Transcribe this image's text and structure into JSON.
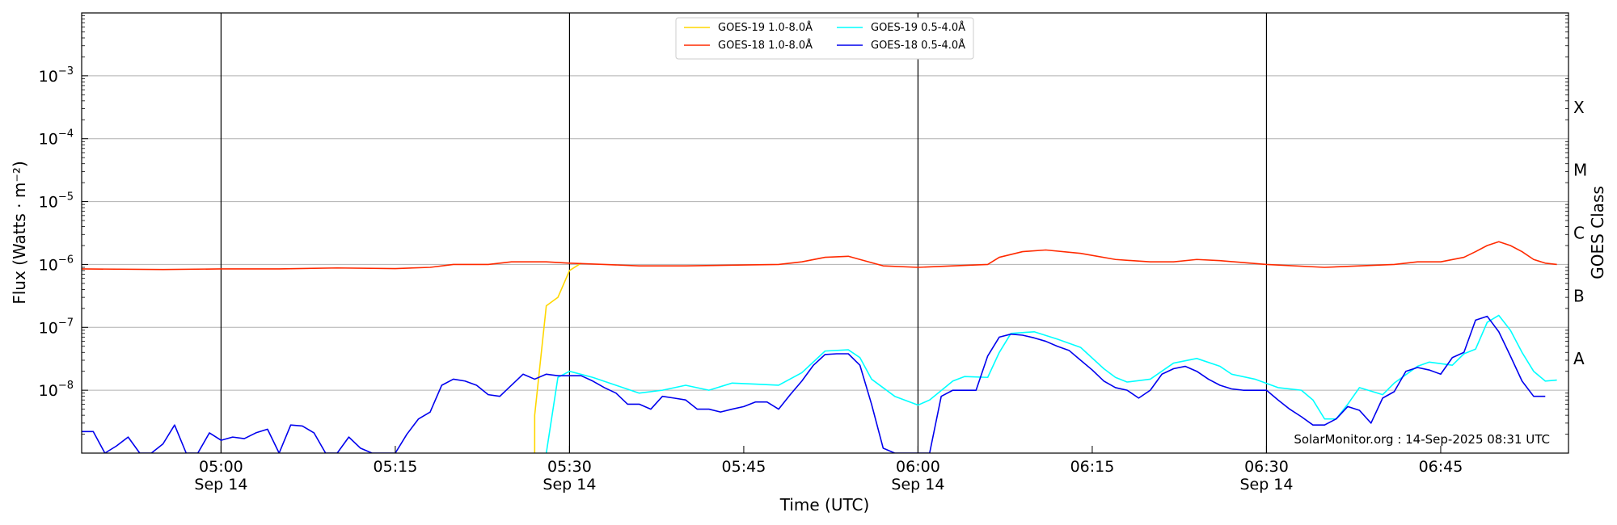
{
  "chart_data": {
    "type": "line",
    "xlabel": "Time (UTC)",
    "ylabel": "Flux (Watts · m⁻²)",
    "y2label": "GOES Class",
    "yscale": "log",
    "ylim": [
      1e-09,
      0.01
    ],
    "xlim": [
      "04:48",
      "06:56"
    ],
    "grid": "horizontal",
    "legend_position": "top-center",
    "credit": "SolarMonitor.org : 14-Sep-2025 08:31 UTC",
    "x_ticks": [
      {
        "t": "05:00",
        "date": "Sep 14"
      },
      {
        "t": "05:15",
        "date": ""
      },
      {
        "t": "05:30",
        "date": "Sep 14"
      },
      {
        "t": "05:45",
        "date": ""
      },
      {
        "t": "06:00",
        "date": "Sep 14"
      },
      {
        "t": "06:15",
        "date": ""
      },
      {
        "t": "06:30",
        "date": "Sep 14"
      },
      {
        "t": "06:45",
        "date": ""
      }
    ],
    "day_lines": [
      "05:00",
      "05:30",
      "06:00",
      "06:30"
    ],
    "y_ticks": [
      {
        "v": 1e-08,
        "sup": "−8"
      },
      {
        "v": 1e-07,
        "sup": "−7"
      },
      {
        "v": 1e-06,
        "sup": "−6"
      },
      {
        "v": 1e-05,
        "sup": "−5"
      },
      {
        "v": 0.0001,
        "sup": "−4"
      },
      {
        "v": 0.001,
        "sup": "−3"
      }
    ],
    "goes_classes": [
      {
        "label": "A",
        "v": 1e-08
      },
      {
        "label": "B",
        "v": 1e-07
      },
      {
        "label": "C",
        "v": 1e-06
      },
      {
        "label": "M",
        "v": 1e-05
      },
      {
        "label": "X",
        "v": 0.0001
      }
    ],
    "series": [
      {
        "name": "GOES-19 1.0-8.0Å",
        "color": "#ffd700",
        "points": [
          [
            "05:27",
            1e-09
          ],
          [
            "05:27",
            4e-09
          ],
          [
            "05:28",
            2.2e-07
          ],
          [
            "05:29",
            3e-07
          ],
          [
            "05:30",
            8e-07
          ],
          [
            "05:31",
            1.05e-06
          ]
        ]
      },
      {
        "name": "GOES-19 0.5-4.0Å",
        "color": "#00ffff",
        "points": [
          [
            "05:28",
            1e-09
          ],
          [
            "05:29",
            1.6e-08
          ],
          [
            "05:30",
            2e-08
          ],
          [
            "05:32",
            1.6e-08
          ],
          [
            "05:34",
            1.2e-08
          ],
          [
            "05:36",
            9e-09
          ],
          [
            "05:38",
            1e-08
          ],
          [
            "05:40",
            1.2e-08
          ],
          [
            "05:42",
            1e-08
          ],
          [
            "05:44",
            1.3e-08
          ],
          [
            "05:46",
            1.25e-08
          ],
          [
            "05:48",
            1.2e-08
          ],
          [
            "05:50",
            1.9e-08
          ],
          [
            "05:52",
            4.2e-08
          ],
          [
            "05:54",
            4.4e-08
          ],
          [
            "05:55",
            3.3e-08
          ],
          [
            "05:56",
            1.5e-08
          ],
          [
            "05:58",
            8e-09
          ],
          [
            "06:00",
            5.8e-09
          ],
          [
            "06:01",
            7e-09
          ],
          [
            "06:03",
            1.4e-08
          ],
          [
            "06:04",
            1.65e-08
          ],
          [
            "06:06",
            1.6e-08
          ],
          [
            "06:07",
            4e-08
          ],
          [
            "06:08",
            8e-08
          ],
          [
            "06:10",
            8.5e-08
          ],
          [
            "06:12",
            6.5e-08
          ],
          [
            "06:14",
            4.8e-08
          ],
          [
            "06:16",
            2.2e-08
          ],
          [
            "06:17",
            1.6e-08
          ],
          [
            "06:18",
            1.35e-08
          ],
          [
            "06:20",
            1.5e-08
          ],
          [
            "06:22",
            2.7e-08
          ],
          [
            "06:24",
            3.2e-08
          ],
          [
            "06:26",
            2.4e-08
          ],
          [
            "06:27",
            1.8e-08
          ],
          [
            "06:29",
            1.5e-08
          ],
          [
            "06:31",
            1.1e-08
          ],
          [
            "06:33",
            1e-08
          ],
          [
            "06:34",
            7e-09
          ],
          [
            "06:35",
            3.5e-09
          ],
          [
            "06:36",
            3.5e-09
          ],
          [
            "06:37",
            6e-09
          ],
          [
            "06:38",
            1.1e-08
          ],
          [
            "06:40",
            8.5e-09
          ],
          [
            "06:41",
            1.3e-08
          ],
          [
            "06:43",
            2.4e-08
          ],
          [
            "06:44",
            2.8e-08
          ],
          [
            "06:46",
            2.5e-08
          ],
          [
            "06:47",
            3.8e-08
          ],
          [
            "06:48",
            4.5e-08
          ],
          [
            "06:49",
            1.2e-07
          ],
          [
            "06:50",
            1.55e-07
          ],
          [
            "06:51",
            9e-08
          ],
          [
            "06:52",
            4e-08
          ],
          [
            "06:53",
            2e-08
          ],
          [
            "06:54",
            1.4e-08
          ],
          [
            "06:55",
            1.45e-08
          ]
        ]
      },
      {
        "name": "GOES-18 1.0-8.0Å",
        "color": "#ff2a00",
        "points": [
          [
            "04:48",
            8.5e-07
          ],
          [
            "04:55",
            8.3e-07
          ],
          [
            "05:00",
            8.5e-07
          ],
          [
            "05:05",
            8.5e-07
          ],
          [
            "05:10",
            8.8e-07
          ],
          [
            "05:15",
            8.6e-07
          ],
          [
            "05:18",
            9e-07
          ],
          [
            "05:20",
            1e-06
          ],
          [
            "05:23",
            1e-06
          ],
          [
            "05:25",
            1.1e-06
          ],
          [
            "05:28",
            1.1e-06
          ],
          [
            "05:30",
            1.05e-06
          ],
          [
            "05:33",
            1e-06
          ],
          [
            "05:36",
            9.5e-07
          ],
          [
            "05:40",
            9.5e-07
          ],
          [
            "05:45",
            9.8e-07
          ],
          [
            "05:48",
            1e-06
          ],
          [
            "05:50",
            1.1e-06
          ],
          [
            "05:52",
            1.3e-06
          ],
          [
            "05:54",
            1.35e-06
          ],
          [
            "05:55",
            1.2e-06
          ],
          [
            "05:57",
            9.5e-07
          ],
          [
            "06:00",
            9e-07
          ],
          [
            "06:03",
            9.5e-07
          ],
          [
            "06:06",
            1e-06
          ],
          [
            "06:07",
            1.3e-06
          ],
          [
            "06:09",
            1.6e-06
          ],
          [
            "06:11",
            1.7e-06
          ],
          [
            "06:14",
            1.5e-06
          ],
          [
            "06:17",
            1.2e-06
          ],
          [
            "06:20",
            1.1e-06
          ],
          [
            "06:22",
            1.1e-06
          ],
          [
            "06:24",
            1.2e-06
          ],
          [
            "06:26",
            1.15e-06
          ],
          [
            "06:30",
            1e-06
          ],
          [
            "06:35",
            9e-07
          ],
          [
            "06:38",
            9.5e-07
          ],
          [
            "06:41",
            1e-06
          ],
          [
            "06:43",
            1.1e-06
          ],
          [
            "06:45",
            1.1e-06
          ],
          [
            "06:47",
            1.3e-06
          ],
          [
            "06:48",
            1.6e-06
          ],
          [
            "06:49",
            2e-06
          ],
          [
            "06:50",
            2.3e-06
          ],
          [
            "06:51",
            2e-06
          ],
          [
            "06:52",
            1.6e-06
          ],
          [
            "06:53",
            1.2e-06
          ],
          [
            "06:54",
            1.05e-06
          ],
          [
            "06:55",
            1e-06
          ]
        ]
      },
      {
        "name": "GOES-18 0.5-4.0Å",
        "color": "#0000ee",
        "points": [
          [
            "04:48",
            2.2e-09
          ],
          [
            "04:49",
            2.2e-09
          ],
          [
            "04:50",
            1e-09
          ],
          [
            "04:51",
            1.3e-09
          ],
          [
            "04:52",
            1.8e-09
          ],
          [
            "04:53",
            1e-09
          ],
          [
            "04:54",
            1e-09
          ],
          [
            "04:55",
            1.4e-09
          ],
          [
            "04:56",
            2.8e-09
          ],
          [
            "04:57",
            1e-09
          ],
          [
            "04:58",
            1e-09
          ],
          [
            "04:59",
            2.1e-09
          ],
          [
            "05:00",
            1.6e-09
          ],
          [
            "05:01",
            1.8e-09
          ],
          [
            "05:02",
            1.7e-09
          ],
          [
            "05:03",
            2.1e-09
          ],
          [
            "05:04",
            2.4e-09
          ],
          [
            "05:05",
            1e-09
          ],
          [
            "05:06",
            2.8e-09
          ],
          [
            "05:07",
            2.7e-09
          ],
          [
            "05:08",
            2.1e-09
          ],
          [
            "05:09",
            1e-09
          ],
          [
            "05:10",
            1e-09
          ],
          [
            "05:11",
            1.8e-09
          ],
          [
            "05:12",
            1.2e-09
          ],
          [
            "05:13",
            1e-09
          ],
          [
            "05:14",
            1e-09
          ],
          [
            "05:15",
            1e-09
          ],
          [
            "05:16",
            2e-09
          ],
          [
            "05:17",
            3.5e-09
          ],
          [
            "05:18",
            4.5e-09
          ],
          [
            "05:19",
            1.2e-08
          ],
          [
            "05:20",
            1.5e-08
          ],
          [
            "05:21",
            1.4e-08
          ],
          [
            "05:22",
            1.2e-08
          ],
          [
            "05:23",
            8.5e-09
          ],
          [
            "05:24",
            8e-09
          ],
          [
            "05:25",
            1.2e-08
          ],
          [
            "05:26",
            1.8e-08
          ],
          [
            "05:27",
            1.5e-08
          ],
          [
            "05:28",
            1.8e-08
          ],
          [
            "05:29",
            1.7e-08
          ],
          [
            "05:30",
            1.7e-08
          ],
          [
            "05:31",
            1.7e-08
          ],
          [
            "05:32",
            1.4e-08
          ],
          [
            "05:33",
            1.1e-08
          ],
          [
            "05:34",
            9e-09
          ],
          [
            "05:35",
            6e-09
          ],
          [
            "05:36",
            6e-09
          ],
          [
            "05:37",
            5e-09
          ],
          [
            "05:38",
            8e-09
          ],
          [
            "05:39",
            7.5e-09
          ],
          [
            "05:40",
            7e-09
          ],
          [
            "05:41",
            5e-09
          ],
          [
            "05:42",
            5e-09
          ],
          [
            "05:43",
            4.5e-09
          ],
          [
            "05:44",
            5e-09
          ],
          [
            "05:45",
            5.5e-09
          ],
          [
            "05:46",
            6.5e-09
          ],
          [
            "05:47",
            6.5e-09
          ],
          [
            "05:48",
            5e-09
          ],
          [
            "05:49",
            8.5e-09
          ],
          [
            "05:50",
            1.4e-08
          ],
          [
            "05:51",
            2.5e-08
          ],
          [
            "05:52",
            3.7e-08
          ],
          [
            "05:53",
            3.8e-08
          ],
          [
            "05:54",
            3.8e-08
          ],
          [
            "05:55",
            2.5e-08
          ],
          [
            "05:56",
            6e-09
          ],
          [
            "05:57",
            1.2e-09
          ],
          [
            "05:58",
            1e-09
          ],
          [
            "06:01",
            1e-09
          ],
          [
            "06:02",
            8e-09
          ],
          [
            "06:03",
            1e-08
          ],
          [
            "06:04",
            1e-08
          ],
          [
            "06:05",
            1e-08
          ],
          [
            "06:06",
            3.5e-08
          ],
          [
            "06:07",
            7e-08
          ],
          [
            "06:08",
            7.8e-08
          ],
          [
            "06:09",
            7.5e-08
          ],
          [
            "06:10",
            6.8e-08
          ],
          [
            "06:11",
            6e-08
          ],
          [
            "06:12",
            5e-08
          ],
          [
            "06:13",
            4.3e-08
          ],
          [
            "06:14",
            3e-08
          ],
          [
            "06:15",
            2.1e-08
          ],
          [
            "06:16",
            1.4e-08
          ],
          [
            "06:17",
            1.1e-08
          ],
          [
            "06:18",
            1e-08
          ],
          [
            "06:19",
            7.5e-09
          ],
          [
            "06:20",
            1e-08
          ],
          [
            "06:21",
            1.8e-08
          ],
          [
            "06:22",
            2.2e-08
          ],
          [
            "06:23",
            2.4e-08
          ],
          [
            "06:24",
            2e-08
          ],
          [
            "06:25",
            1.5e-08
          ],
          [
            "06:26",
            1.2e-08
          ],
          [
            "06:27",
            1.05e-08
          ],
          [
            "06:28",
            1e-08
          ],
          [
            "06:29",
            1e-08
          ],
          [
            "06:30",
            1e-08
          ],
          [
            "06:31",
            7e-09
          ],
          [
            "06:32",
            5e-09
          ],
          [
            "06:33",
            3.8e-09
          ],
          [
            "06:34",
            2.8e-09
          ],
          [
            "06:35",
            2.8e-09
          ],
          [
            "06:36",
            3.5e-09
          ],
          [
            "06:37",
            5.5e-09
          ],
          [
            "06:38",
            4.8e-09
          ],
          [
            "06:39",
            3e-09
          ],
          [
            "06:40",
            7.5e-09
          ],
          [
            "06:41",
            9.5e-09
          ],
          [
            "06:42",
            2e-08
          ],
          [
            "06:43",
            2.3e-08
          ],
          [
            "06:44",
            2.1e-08
          ],
          [
            "06:45",
            1.8e-08
          ],
          [
            "06:46",
            3.3e-08
          ],
          [
            "06:47",
            4e-08
          ],
          [
            "06:48",
            1.3e-07
          ],
          [
            "06:49",
            1.5e-07
          ],
          [
            "06:50",
            8.5e-08
          ],
          [
            "06:51",
            3.5e-08
          ],
          [
            "06:52",
            1.4e-08
          ],
          [
            "06:53",
            8e-09
          ],
          [
            "06:54",
            8e-09
          ]
        ]
      }
    ]
  }
}
